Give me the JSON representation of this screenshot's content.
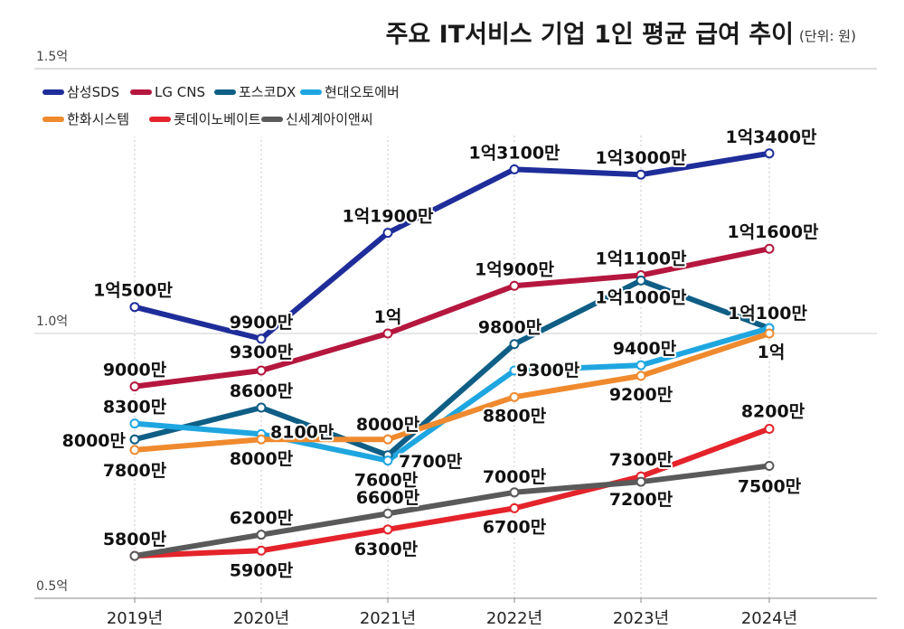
{
  "chart_data": {
    "type": "line",
    "title": "주요 IT서비스 기업 1인 평균 급여 추이",
    "unit": "(단위: 원)",
    "categories": [
      "2019년",
      "2020년",
      "2021년",
      "2022년",
      "2023년",
      "2024년"
    ],
    "ylim": [
      5000,
      15000
    ],
    "yticks": [
      {
        "value": 15000,
        "label": "1.5억"
      },
      {
        "value": 10000,
        "label": "1.0억"
      },
      {
        "value": 5000,
        "label": "0.5억"
      }
    ],
    "grid": true,
    "legend_position": "top-left",
    "series": [
      {
        "name": "삼성SDS",
        "color": "#1f2d9a",
        "values": [
          10500,
          9900,
          11900,
          13100,
          13000,
          13400
        ],
        "labels": [
          "1억500만",
          "9900만",
          "1억1900만",
          "1억3100만",
          "1억3000만",
          "1억3400만"
        ]
      },
      {
        "name": "LG CNS",
        "color": "#b5173e",
        "values": [
          9000,
          9300,
          10000,
          10900,
          11100,
          11600
        ],
        "labels": [
          "9000만",
          "9300만",
          "1억",
          "1억900만",
          "1억1100만",
          "1억1600만"
        ]
      },
      {
        "name": "포스코DX",
        "color": "#0f5e86",
        "values": [
          8000,
          8600,
          7700,
          9800,
          11000,
          10100
        ],
        "labels": [
          "8000만",
          "8600만",
          "7700만",
          "9800만",
          "1억1000만",
          "1억100만"
        ]
      },
      {
        "name": "현대오토에버",
        "color": "#1fa6e0",
        "values": [
          8300,
          8100,
          7600,
          9300,
          9400,
          10100
        ],
        "labels": [
          "8300만",
          "8100만",
          "7600만",
          "9300만",
          "9400만",
          ""
        ]
      },
      {
        "name": "한화시스템",
        "color": "#ef8a2e",
        "values": [
          7800,
          8000,
          8000,
          8800,
          9200,
          10000
        ],
        "labels": [
          "7800만",
          "8000만",
          "8000만",
          "8800만",
          "9200만",
          "1억"
        ]
      },
      {
        "name": "롯데이노베이트",
        "color": "#e4232b",
        "values": [
          5800,
          5900,
          6300,
          6700,
          7300,
          8200
        ],
        "labels": [
          "5800만",
          "5900만",
          "6300만",
          "6700만",
          "7300만",
          "8200만"
        ]
      },
      {
        "name": "신세계아이앤씨",
        "color": "#5a5a5a",
        "values": [
          5800,
          6200,
          6600,
          7000,
          7200,
          7500
        ],
        "labels": [
          "",
          "6200만",
          "6600만",
          "7000만",
          "7200만",
          "7500만"
        ]
      }
    ]
  }
}
